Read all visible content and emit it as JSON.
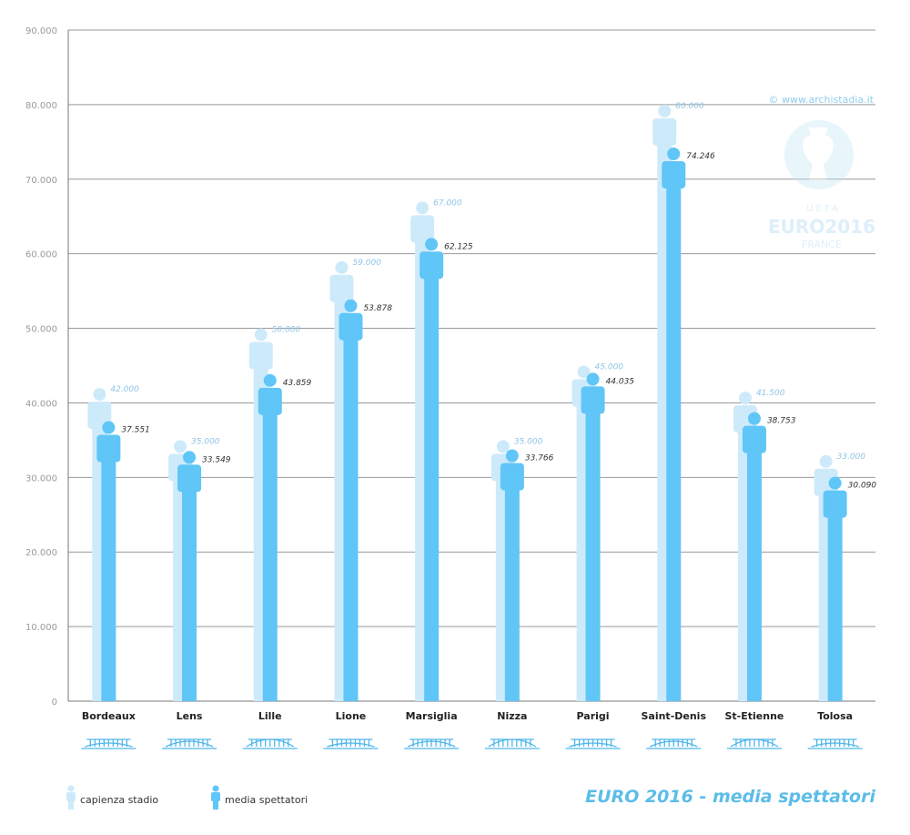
{
  "chart_data": {
    "type": "bar",
    "title": "EURO 2016 - media spettatori",
    "credit": "© www.archistadia.it",
    "watermark": {
      "lines": [
        "UEFA",
        "EURO2016",
        "FRANCE"
      ]
    },
    "ylim": [
      0,
      90000
    ],
    "yticks": [
      0,
      10000,
      20000,
      30000,
      40000,
      50000,
      60000,
      70000,
      80000,
      90000
    ],
    "ytick_labels": [
      "0",
      "10.000",
      "20.000",
      "30.000",
      "40.000",
      "50.000",
      "60.000",
      "70.000",
      "80.000",
      "90.000"
    ],
    "grid": true,
    "legend_position": "bottom-left",
    "categories": [
      "Bordeaux",
      "Lens",
      "Lille",
      "Lione",
      "Marsiglia",
      "Nizza",
      "Parigi",
      "Saint-Denis",
      "St-Etienne",
      "Tolosa"
    ],
    "series": [
      {
        "name": "capienza stadio",
        "color": "#cdeafb",
        "values": [
          42000,
          35000,
          50000,
          59000,
          67000,
          35000,
          45000,
          80000,
          41500,
          33000
        ],
        "labels": [
          "42.000",
          "35.000",
          "50.000",
          "59.000",
          "67.000",
          "35.000",
          "45.000",
          "80.000",
          "41.500",
          "33.000"
        ]
      },
      {
        "name": "media spettatori",
        "color": "#5fc6f7",
        "values": [
          37551,
          33549,
          43859,
          53878,
          62125,
          33766,
          44035,
          74246,
          38753,
          30090
        ],
        "labels": [
          "37.551",
          "33.549",
          "43.859",
          "53.878",
          "62.125",
          "33.766",
          "44.035",
          "74.246",
          "38.753",
          "30.090"
        ]
      }
    ]
  }
}
